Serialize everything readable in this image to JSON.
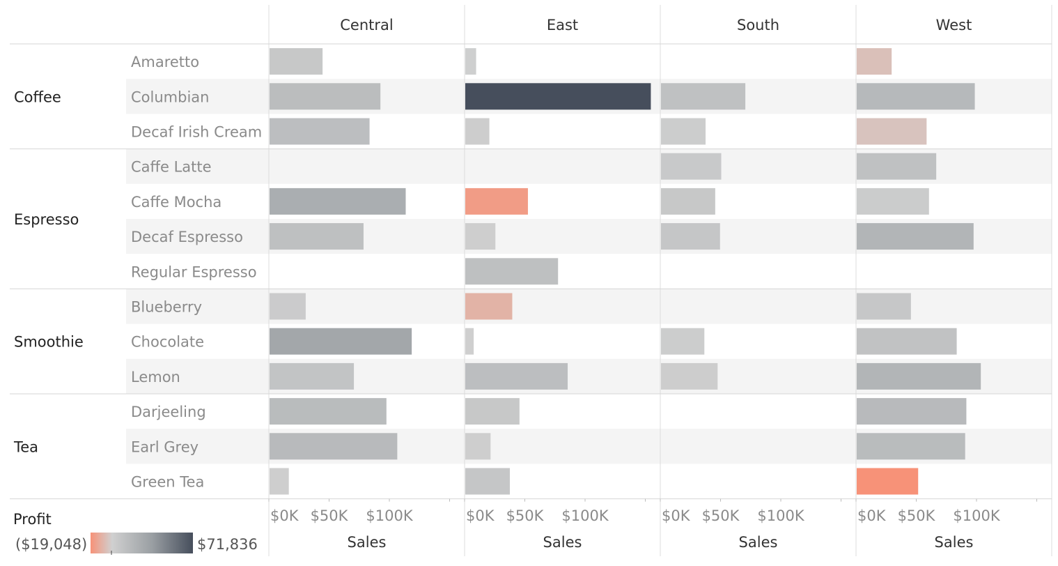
{
  "chart_data": {
    "type": "bar",
    "orientation": "horizontal",
    "columns": [
      "Central",
      "East",
      "South",
      "West"
    ],
    "groups": [
      {
        "name": "Coffee",
        "products": [
          "Amaretto",
          "Columbian",
          "Decaf Irish Cream"
        ]
      },
      {
        "name": "Espresso",
        "products": [
          "Caffe Latte",
          "Caffe Mocha",
          "Decaf Espresso",
          "Regular Espresso"
        ]
      },
      {
        "name": "Smoothie",
        "products": [
          "Blueberry",
          "Chocolate",
          "Lemon"
        ]
      },
      {
        "name": "Tea",
        "products": [
          "Darjeeling",
          "Earl Grey",
          "Green Tea"
        ]
      }
    ],
    "xlabel": "Sales",
    "x_ticks": [
      "$0K",
      "$50K",
      "$100K"
    ],
    "x_tick_values": [
      0,
      50000,
      100000
    ],
    "xlim": [
      0,
      160000
    ],
    "color_legend": {
      "title": "Profit",
      "min_label": "($19,048)",
      "max_label": "$71,836",
      "min": -19048,
      "max": 71836,
      "gradient": [
        "#f79278",
        "#d0d0d0",
        "#9a9fa3",
        "#464e5c"
      ]
    },
    "series": [
      {
        "region": "Central",
        "sales": [
          44000,
          92000,
          83000,
          null,
          113000,
          78000,
          null,
          30000,
          118000,
          70000,
          97000,
          106000,
          16000
        ],
        "profit": [
          6000,
          14000,
          13000,
          null,
          25000,
          12000,
          null,
          3500,
          30000,
          9000,
          15000,
          16000,
          1500
        ]
      },
      {
        "region": "East",
        "sales": [
          9000,
          154000,
          20000,
          null,
          52000,
          25000,
          77000,
          39000,
          7000,
          85000,
          45000,
          21000,
          37000
        ],
        "profit": [
          1000,
          71836,
          2000,
          null,
          -16000,
          1500,
          12000,
          -9000,
          500,
          13000,
          6000,
          1500,
          7000
        ]
      },
      {
        "region": "South",
        "sales": [
          null,
          70000,
          37000,
          50000,
          45000,
          49000,
          null,
          null,
          36000,
          47000,
          null,
          null,
          null
        ],
        "profit": [
          null,
          11000,
          2500,
          5000,
          6000,
          7000,
          null,
          null,
          2500,
          2000,
          null,
          null,
          null
        ]
      },
      {
        "region": "West",
        "sales": [
          29000,
          98000,
          58000,
          66000,
          60000,
          97000,
          null,
          45000,
          83000,
          103000,
          91000,
          90000,
          51000
        ],
        "profit": [
          -5000,
          17000,
          -4000,
          11000,
          3000,
          20000,
          null,
          6500,
          10000,
          20000,
          16000,
          15000,
          -19048
        ]
      }
    ]
  }
}
